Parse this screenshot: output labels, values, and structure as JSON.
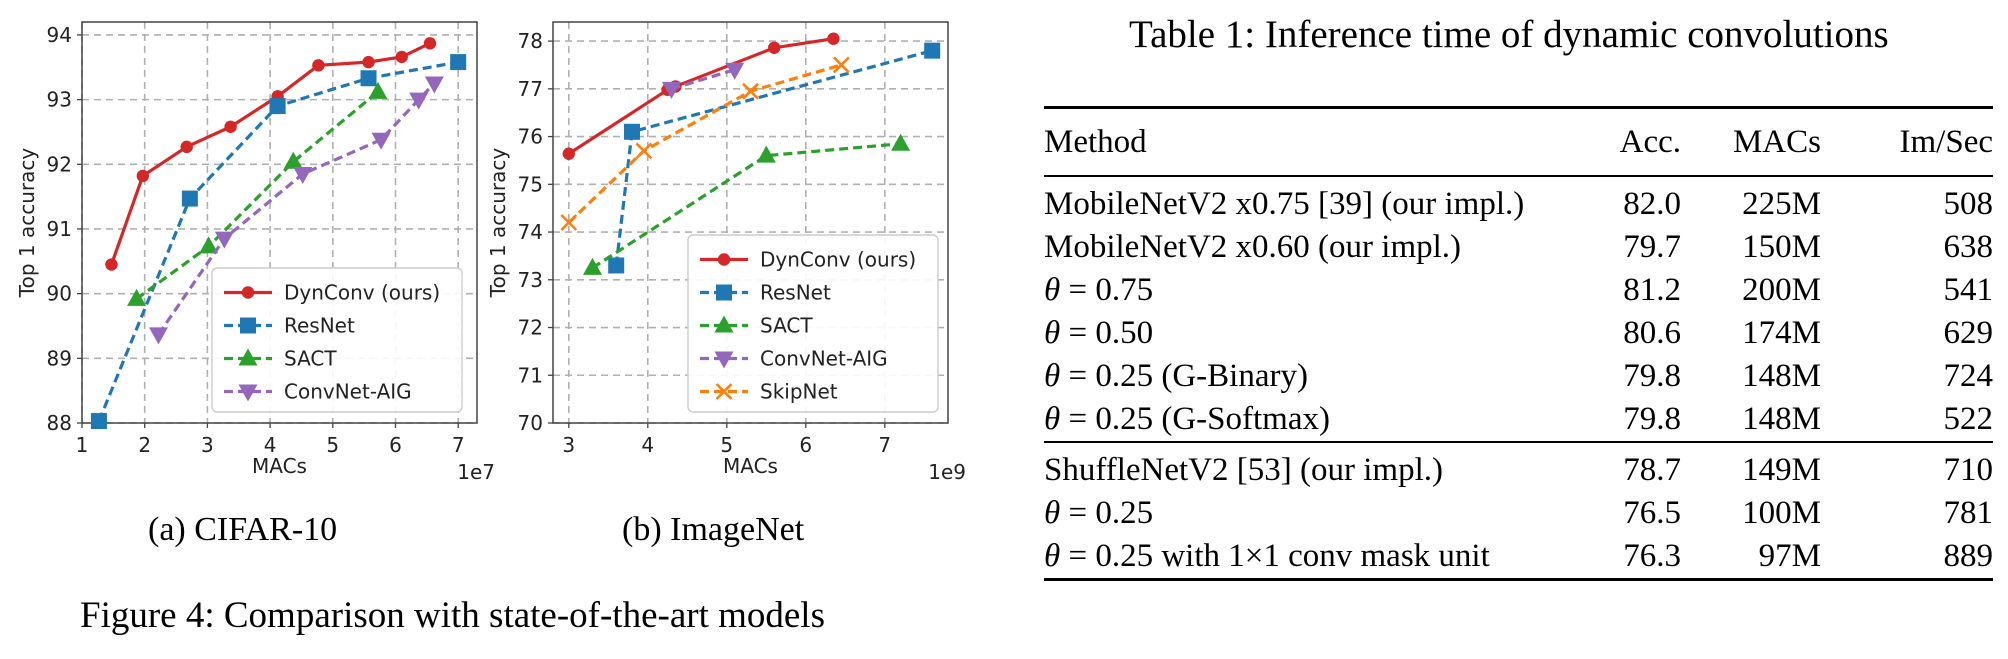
{
  "figure": {
    "caption": "Figure 4: Comparison with state-of-the-art models",
    "subfigures": [
      {
        "caption": "(a) CIFAR-10"
      },
      {
        "caption": "(b) ImageNet"
      }
    ]
  },
  "chart_data": [
    {
      "type": "line",
      "xlabel": "MACs",
      "ylabel": "Top 1 accuracy",
      "x_multiplier": "1e7",
      "xlim": [
        1.0,
        7.3
      ],
      "ylim": [
        88,
        94.2
      ],
      "xticks": [
        "1",
        "2",
        "3",
        "4",
        "5",
        "6",
        "7"
      ],
      "yticks": [
        "88",
        "89",
        "90",
        "91",
        "92",
        "93",
        "94"
      ],
      "grid": true,
      "legend": "bottom-right",
      "series": [
        {
          "name": "DynConv (ours)",
          "color": "#d62728",
          "marker": "circle",
          "dash": false,
          "x": [
            1.47,
            1.97,
            2.67,
            3.37,
            4.12,
            4.77,
            5.57,
            6.1,
            6.55
          ],
          "y": [
            90.45,
            91.82,
            92.27,
            92.58,
            93.05,
            93.53,
            93.58,
            93.66,
            93.87
          ]
        },
        {
          "name": "ResNet",
          "color": "#1f77b4",
          "marker": "square",
          "dash": true,
          "x": [
            1.27,
            2.72,
            4.12,
            5.57,
            7.0
          ],
          "y": [
            88.03,
            91.47,
            92.9,
            93.33,
            93.58
          ]
        },
        {
          "name": "SACT",
          "color": "#2ca02c",
          "marker": "triangle-up",
          "dash": true,
          "x": [
            1.87,
            3.02,
            4.37,
            5.72
          ],
          "y": [
            89.92,
            90.73,
            92.04,
            93.12
          ]
        },
        {
          "name": "ConvNet-AIG",
          "color": "#9467bd",
          "marker": "triangle-down",
          "dash": true,
          "x": [
            2.22,
            3.27,
            4.52,
            5.77,
            6.37,
            6.62
          ],
          "y": [
            89.37,
            90.85,
            91.85,
            92.38,
            93.0,
            93.25
          ]
        }
      ]
    },
    {
      "type": "line",
      "xlabel": "MACs",
      "ylabel": "Top 1 accuracy",
      "x_multiplier": "1e9",
      "xlim": [
        2.8,
        7.8
      ],
      "ylim": [
        70,
        78.4
      ],
      "xticks": [
        "3",
        "4",
        "5",
        "6",
        "7"
      ],
      "yticks": [
        "70",
        "71",
        "72",
        "73",
        "74",
        "75",
        "76",
        "77",
        "78"
      ],
      "grid": true,
      "legend": "bottom-right",
      "series": [
        {
          "name": "DynConv (ours)",
          "color": "#d62728",
          "marker": "circle",
          "dash": false,
          "x": [
            3.0,
            4.25,
            4.35,
            5.6,
            6.35
          ],
          "y": [
            75.64,
            76.98,
            77.05,
            77.86,
            78.05
          ]
        },
        {
          "name": "ResNet",
          "color": "#1f77b4",
          "marker": "square",
          "dash": true,
          "x": [
            3.6,
            3.8,
            7.6
          ],
          "y": [
            73.3,
            76.1,
            77.8
          ]
        },
        {
          "name": "SACT",
          "color": "#2ca02c",
          "marker": "triangle-up",
          "dash": true,
          "x": [
            3.3,
            5.5,
            7.2
          ],
          "y": [
            73.25,
            75.6,
            75.85
          ]
        },
        {
          "name": "ConvNet-AIG",
          "color": "#9467bd",
          "marker": "triangle-down",
          "dash": true,
          "x": [
            4.3,
            5.1
          ],
          "y": [
            77.0,
            77.4
          ]
        },
        {
          "name": "SkipNet",
          "color": "#ff7f0e",
          "marker": "x",
          "dash": true,
          "x": [
            3.0,
            3.95,
            5.3,
            6.45
          ],
          "y": [
            74.2,
            75.7,
            76.95,
            77.5
          ]
        }
      ]
    }
  ],
  "table": {
    "title": "Table 1: Inference time of dynamic convolutions",
    "columns": [
      "Method",
      "Acc.",
      "MACs",
      "Im/Sec"
    ],
    "rows": [
      [
        "MobileNetV2 x0.75 [39] (our impl.)",
        "82.0",
        "225M",
        "508"
      ],
      [
        "MobileNetV2 x0.60 (our impl.)",
        "79.7",
        "150M",
        "638"
      ],
      [
        "θ = 0.75",
        "81.2",
        "200M",
        "541"
      ],
      [
        "θ = 0.50",
        "80.6",
        "174M",
        "629"
      ],
      [
        "θ = 0.25 (G-Binary)",
        "79.8",
        "148M",
        "724"
      ],
      [
        "θ = 0.25 (G-Softmax)",
        "79.8",
        "148M",
        "522"
      ],
      [
        "ShuffleNetV2 [53] (our impl.)",
        "78.7",
        "149M",
        "710"
      ],
      [
        "θ = 0.25",
        "76.5",
        "100M",
        "781"
      ],
      [
        "θ = 0.25 with 1×1 conv mask unit",
        "76.3",
        "97M",
        "889"
      ]
    ]
  }
}
